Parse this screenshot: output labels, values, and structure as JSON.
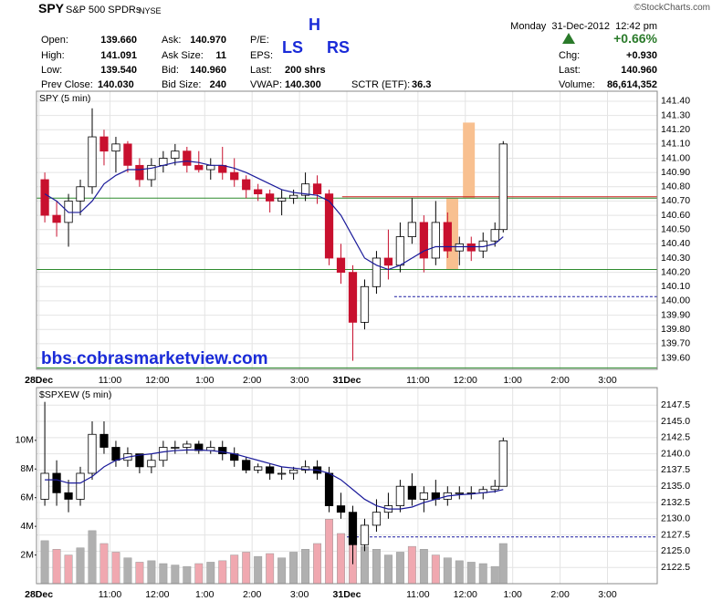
{
  "header": {
    "symbol": "SPY",
    "name": "S&P 500 SPDRs",
    "exchange": "NYSE",
    "copyright": "©StockCharts.com",
    "date": "Monday  31-Dec-2012  12:42 pm",
    "pattern": {
      "top": "H",
      "left": "LS",
      "right": "RS"
    },
    "col1": [
      [
        "Open:",
        "139.660"
      ],
      [
        "High:",
        "141.091"
      ],
      [
        "Low:",
        "139.540"
      ],
      [
        "Prev Close:",
        "140.030"
      ]
    ],
    "col2": [
      [
        "Ask:",
        "140.970"
      ],
      [
        "Ask Size:",
        "11"
      ],
      [
        "Bid:",
        "140.960"
      ],
      [
        "Bid Size:",
        "240"
      ]
    ],
    "col3": [
      [
        "P/E:"
      ],
      [
        "EPS:"
      ],
      [
        "Last:",
        "200 shrs"
      ],
      [
        "VWAP:",
        "140.300"
      ]
    ],
    "sctr": [
      "SCTR (ETF):",
      "36.3"
    ],
    "change_pct": "+0.66%",
    "right": [
      [
        "Chg:",
        "+0.930"
      ],
      [
        "Last:",
        "140.960"
      ],
      [
        "Volume:",
        "86,614,352"
      ]
    ],
    "watermark": "bbs.cobrasmarketview.com"
  },
  "chart_data": [
    {
      "type": "candlestick",
      "title": "SPY (5 min)",
      "up_color": "#ffffff",
      "down_color": "#c8102e",
      "ma_color": "#1a1a9a",
      "x": [
        0.125,
        0.375,
        0.625,
        0.875,
        1.125,
        1.375,
        1.625,
        1.875,
        2.125,
        2.375,
        2.625,
        2.875,
        3.125,
        3.375,
        3.625,
        3.875,
        4.125,
        4.375,
        4.625,
        4.875,
        5.125,
        5.375,
        5.625,
        5.875,
        6.125,
        6.375,
        6.625,
        6.875,
        7.125,
        7.375,
        7.625,
        7.875,
        8.125,
        8.375,
        8.625,
        8.875,
        9.125,
        9.375,
        9.625,
        9.8
      ],
      "open": [
        140.85,
        140.6,
        140.55,
        140.7,
        140.8,
        141.15,
        141.05,
        141.1,
        140.95,
        140.85,
        140.95,
        141.0,
        141.05,
        140.95,
        140.92,
        140.95,
        140.9,
        140.85,
        140.78,
        140.75,
        140.7,
        140.72,
        140.74,
        140.82,
        140.75,
        140.3,
        140.2,
        139.85,
        140.1,
        140.3,
        140.25,
        140.45,
        140.55,
        140.3,
        140.55,
        140.35,
        140.4,
        140.35,
        140.42,
        140.5
      ],
      "high": [
        140.9,
        140.7,
        140.75,
        140.85,
        141.35,
        141.2,
        141.15,
        141.12,
        141.0,
        141.0,
        141.05,
        141.1,
        141.08,
        141.05,
        141.0,
        141.08,
        141.0,
        140.88,
        140.82,
        140.78,
        140.78,
        140.78,
        140.9,
        140.88,
        140.78,
        140.4,
        140.25,
        140.15,
        140.35,
        140.5,
        140.55,
        140.72,
        140.6,
        140.7,
        140.62,
        140.45,
        140.45,
        140.48,
        140.55,
        141.12
      ],
      "low": [
        140.55,
        140.45,
        140.38,
        140.6,
        140.75,
        140.95,
        140.9,
        140.9,
        140.8,
        140.8,
        140.9,
        140.95,
        140.9,
        140.9,
        140.85,
        140.85,
        140.8,
        140.72,
        140.7,
        140.62,
        140.6,
        140.68,
        140.7,
        140.68,
        140.25,
        140.12,
        139.58,
        139.8,
        140.05,
        140.15,
        140.2,
        140.4,
        140.2,
        140.25,
        140.3,
        140.25,
        140.28,
        140.3,
        140.38,
        140.48
      ],
      "close": [
        140.6,
        140.55,
        140.7,
        140.8,
        141.15,
        141.05,
        141.1,
        140.95,
        140.85,
        140.95,
        141.0,
        141.05,
        140.95,
        140.92,
        140.95,
        140.9,
        140.85,
        140.78,
        140.75,
        140.7,
        140.72,
        140.74,
        140.82,
        140.75,
        140.3,
        140.2,
        139.85,
        140.1,
        140.3,
        140.25,
        140.45,
        140.55,
        140.3,
        140.55,
        140.35,
        140.4,
        140.35,
        140.42,
        140.5,
        141.1
      ],
      "ma": [
        140.75,
        140.7,
        140.62,
        140.62,
        140.7,
        140.82,
        140.88,
        140.92,
        140.92,
        140.93,
        140.95,
        140.97,
        140.98,
        140.97,
        140.95,
        140.95,
        140.93,
        140.9,
        140.86,
        140.82,
        140.78,
        140.76,
        140.75,
        140.74,
        140.7,
        140.6,
        140.45,
        140.3,
        140.25,
        140.22,
        140.25,
        140.3,
        140.35,
        140.38,
        140.38,
        140.38,
        140.38,
        140.38,
        140.4,
        140.45
      ],
      "hlines": [
        {
          "value": 140.72,
          "color": "#2e8b2e"
        },
        {
          "value": 140.73,
          "color": "#d02020",
          "from": 6.4
        },
        {
          "value": 140.22,
          "color": "#2e8b2e"
        },
        {
          "value": 139.53,
          "color": "#2e8b2e"
        },
        {
          "value": 140.03,
          "color": "#1a1aa0",
          "dashed": true,
          "from": 7.5
        }
      ],
      "zones": [
        {
          "x": [
            8.6,
            8.85
          ],
          "y": [
            140.22,
            140.72
          ]
        },
        {
          "x": [
            8.95,
            9.2
          ],
          "y": [
            140.72,
            141.25
          ]
        }
      ],
      "zone_color": "#f8c090",
      "xlim": [
        -0.05,
        13.05
      ],
      "ylim": [
        139.52,
        141.47
      ],
      "xticks": [
        {
          "value": 0,
          "label": "28Dec"
        },
        {
          "value": 1.5,
          "label": "11:00"
        },
        {
          "value": 2.5,
          "label": "12:00"
        },
        {
          "value": 3.5,
          "label": "1:00"
        },
        {
          "value": 4.5,
          "label": "2:00"
        },
        {
          "value": 5.5,
          "label": "3:00"
        },
        {
          "value": 6.5,
          "label": "31Dec"
        },
        {
          "value": 8,
          "label": "11:00"
        },
        {
          "value": 9,
          "label": "12:00"
        },
        {
          "value": 10,
          "label": "1:00"
        },
        {
          "value": 11,
          "label": "2:00"
        },
        {
          "value": 12,
          "label": "3:00"
        }
      ],
      "yticks": [
        {
          "value": 139.6,
          "label": "139.60"
        },
        {
          "value": 139.7,
          "label": "139.70"
        },
        {
          "value": 139.8,
          "label": "139.80"
        },
        {
          "value": 139.9,
          "label": "139.90"
        },
        {
          "value": 140,
          "label": "140.00"
        },
        {
          "value": 140.1,
          "label": "140.10"
        },
        {
          "value": 140.2,
          "label": "140.20"
        },
        {
          "value": 140.3,
          "label": "140.30"
        },
        {
          "value": 140.4,
          "label": "140.40"
        },
        {
          "value": 140.5,
          "label": "140.50"
        },
        {
          "value": 140.6,
          "label": "140.60"
        },
        {
          "value": 140.7,
          "label": "140.70"
        },
        {
          "value": 140.8,
          "label": "140.80"
        },
        {
          "value": 140.9,
          "label": "140.90"
        },
        {
          "value": 141,
          "label": "141.00"
        },
        {
          "value": 141.1,
          "label": "141.10"
        },
        {
          "value": 141.2,
          "label": "141.20"
        },
        {
          "value": 141.3,
          "label": "141.30"
        },
        {
          "value": 141.4,
          "label": "141.40"
        }
      ],
      "grid": true
    },
    {
      "type": "candlestick",
      "title": "$SPXEW (5 min)",
      "up_color": "#ffffff",
      "down_color": "#000000",
      "ma_color": "#1a1a9a",
      "vol_up_color": "#b0b0b0",
      "vol_down_color": "#f0a8b0",
      "x": [
        0.125,
        0.375,
        0.625,
        0.875,
        1.125,
        1.375,
        1.625,
        1.875,
        2.125,
        2.375,
        2.625,
        2.875,
        3.125,
        3.375,
        3.625,
        3.875,
        4.125,
        4.375,
        4.625,
        4.875,
        5.125,
        5.375,
        5.625,
        5.875,
        6.125,
        6.375,
        6.625,
        6.875,
        7.125,
        7.375,
        7.625,
        7.875,
        8.125,
        8.375,
        8.625,
        8.875,
        9.125,
        9.375,
        9.625,
        9.8
      ],
      "open": [
        2133,
        2137,
        2134,
        2133,
        2137,
        2143,
        2141,
        2139,
        2140,
        2138,
        2139,
        2141,
        2141,
        2141.5,
        2140.5,
        2141,
        2140,
        2139,
        2137.5,
        2138,
        2137,
        2137,
        2137.5,
        2138,
        2137,
        2132,
        2131,
        2126,
        2129,
        2131,
        2132,
        2135,
        2133,
        2134,
        2133,
        2134,
        2134,
        2134,
        2134.5,
        2135
      ],
      "high": [
        2148,
        2139,
        2136,
        2138,
        2145,
        2145,
        2142,
        2141,
        2140,
        2140,
        2142,
        2142,
        2142,
        2142,
        2142,
        2142,
        2141,
        2139.5,
        2138.5,
        2138.5,
        2138,
        2138,
        2139,
        2139,
        2138,
        2134,
        2132,
        2130,
        2133,
        2134,
        2136,
        2137,
        2135,
        2136,
        2135,
        2135,
        2135,
        2135,
        2136,
        2142.5
      ],
      "low": [
        2132,
        2132,
        2131,
        2132,
        2136,
        2140,
        2138,
        2138,
        2137,
        2137,
        2138,
        2140,
        2140,
        2140,
        2140,
        2139,
        2138,
        2137,
        2137,
        2136,
        2136,
        2136,
        2137,
        2136,
        2131,
        2130,
        2123,
        2125,
        2128,
        2130,
        2131,
        2132,
        2131,
        2132,
        2132,
        2133,
        2133,
        2133,
        2134,
        2135
      ],
      "close": [
        2137,
        2134,
        2133,
        2137,
        2143,
        2141,
        2139,
        2140,
        2138,
        2139,
        2141,
        2141,
        2141.5,
        2140.5,
        2141,
        2140,
        2139,
        2137.5,
        2138,
        2137,
        2137,
        2137.5,
        2138,
        2137,
        2132,
        2131,
        2126,
        2129,
        2131,
        2132,
        2135,
        2133,
        2134,
        2133,
        2134,
        2134,
        2134,
        2134.5,
        2135,
        2142
      ],
      "ma": [
        2136,
        2136,
        2135.5,
        2135.5,
        2136.5,
        2138,
        2139,
        2139.5,
        2139.8,
        2140,
        2140.3,
        2140.5,
        2140.6,
        2140.6,
        2140.5,
        2140.3,
        2140,
        2139.5,
        2139,
        2138.5,
        2138,
        2137.8,
        2137.6,
        2137.5,
        2137,
        2136,
        2134.5,
        2133,
        2132,
        2131.5,
        2131.5,
        2131.8,
        2132.5,
        2133,
        2133.5,
        2133.7,
        2133.8,
        2134,
        2134.2,
        2134.5
      ],
      "volume": [
        3000000,
        2400000,
        2000000,
        2500000,
        3700000,
        2800000,
        2200000,
        1800000,
        1500000,
        1600000,
        1400000,
        1300000,
        1200000,
        1400000,
        1500000,
        1600000,
        2000000,
        2200000,
        1900000,
        2100000,
        1800000,
        2200000,
        2400000,
        2800000,
        4500000,
        3500000,
        3800000,
        2600000,
        2400000,
        2000000,
        2200000,
        2600000,
        2400000,
        2000000,
        1800000,
        1600000,
        1500000,
        1400000,
        1200000,
        2800000
      ],
      "hlines": [
        {
          "value": 2127.2,
          "color": "#1a1aa0",
          "dashed": true,
          "from": 6.5
        }
      ],
      "xlim": [
        -0.05,
        13.05
      ],
      "ylim": [
        2120.0,
        2150.2
      ],
      "y2lim": [
        0,
        13680000
      ],
      "xticks": [
        {
          "value": 0,
          "label": "28Dec"
        },
        {
          "value": 1.5,
          "label": "11:00"
        },
        {
          "value": 2.5,
          "label": "12:00"
        },
        {
          "value": 3.5,
          "label": "1:00"
        },
        {
          "value": 4.5,
          "label": "2:00"
        },
        {
          "value": 5.5,
          "label": "3:00"
        },
        {
          "value": 6.5,
          "label": "31Dec"
        },
        {
          "value": 8,
          "label": "11:00"
        },
        {
          "value": 9,
          "label": "12:00"
        },
        {
          "value": 10,
          "label": "1:00"
        },
        {
          "value": 11,
          "label": "2:00"
        },
        {
          "value": 12,
          "label": "3:00"
        }
      ],
      "yticks": [
        2122.5,
        {
          "value": 2125,
          "label": "2125.0"
        },
        2127.5,
        {
          "value": 2130,
          "label": "2130.0"
        },
        2132.5,
        {
          "value": 2135,
          "label": "2135.0"
        },
        2137.5,
        {
          "value": 2140,
          "label": "2140.0"
        },
        2142.5,
        {
          "value": 2145,
          "label": "2145.0"
        },
        2147.5
      ],
      "y2ticks": [
        {
          "value": 2000000,
          "label": "2M"
        },
        {
          "value": 4000000,
          "label": "4M"
        },
        {
          "value": 6000000,
          "label": "6M"
        },
        {
          "value": 8000000,
          "label": "8M"
        },
        {
          "value": 10000000,
          "label": "10M"
        }
      ],
      "grid": true
    }
  ]
}
